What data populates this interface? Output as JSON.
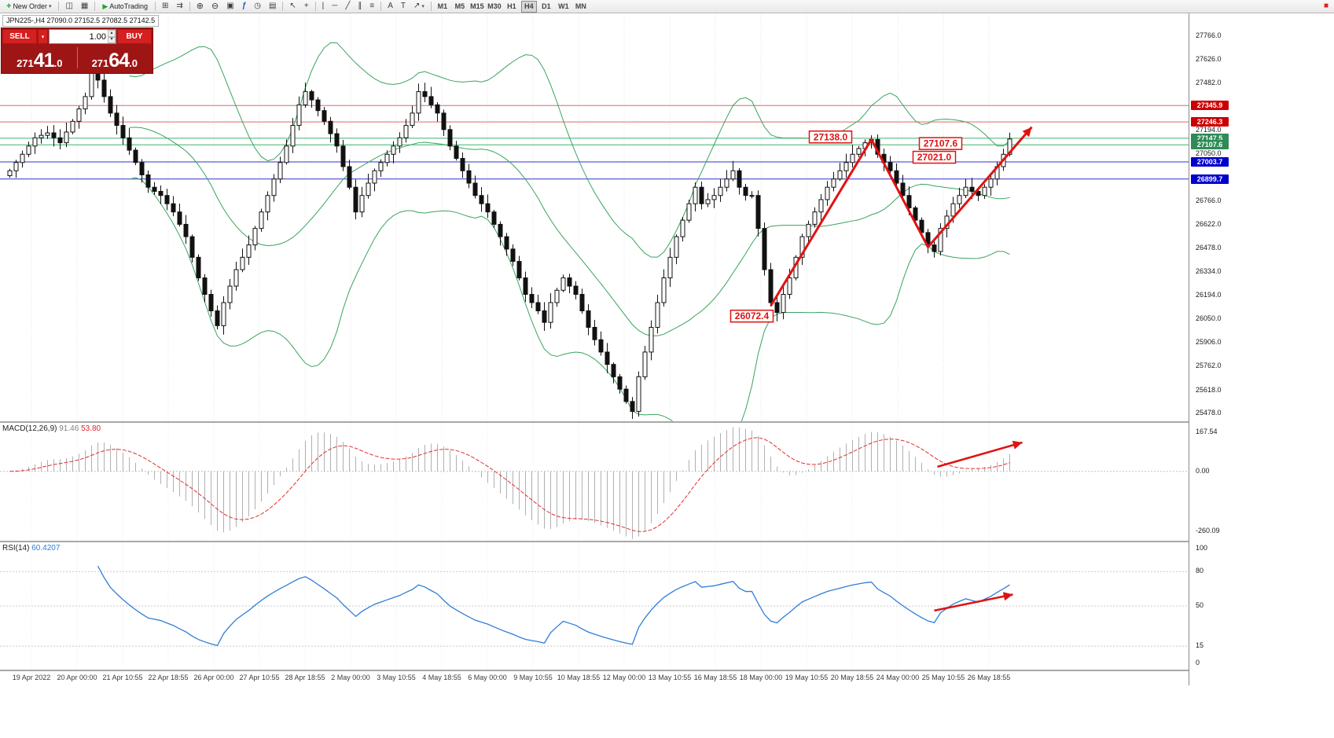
{
  "icons": {
    "doc-plus": "+",
    "chart": "◫",
    "grid": "▦",
    "play": "▶",
    "window-plus": "⊞",
    "auto-scroll": "⇉",
    "zoom-in": "⊕",
    "zoom-out": "⊖",
    "tiles": "▣",
    "function": "ƒ",
    "clock": "◷",
    "template": "▤",
    "cursor": "↖",
    "crosshair": "+",
    "vline": "|",
    "hline": "─",
    "trend": "╱",
    "channel": "∥",
    "fibo": "≡",
    "text-a": "A",
    "text-t": "T",
    "arrow-ne": "↗",
    "red-square": "■",
    "caret-down": "▾",
    "caret-up": "▴"
  },
  "toolbar": {
    "new_order_label": "New Order",
    "autotrading_label": "AutoTrading",
    "timeframes": [
      "M1",
      "M5",
      "M15",
      "M30",
      "H1",
      "H4",
      "D1",
      "W1",
      "MN"
    ],
    "active_timeframe": "H4",
    "items": [
      {
        "type": "button",
        "name": "new-order",
        "label": "New Order",
        "icon": "doc-plus",
        "caret": true
      },
      {
        "type": "sep"
      },
      {
        "type": "icon",
        "name": "charts-list",
        "icon": "chart"
      },
      {
        "type": "icon",
        "name": "profiles",
        "icon": "grid"
      },
      {
        "type": "sep"
      },
      {
        "type": "button",
        "name": "autotrading",
        "label": "AutoTrading",
        "icon": "play"
      },
      {
        "type": "sep"
      },
      {
        "type": "icon",
        "name": "new-chart",
        "icon": "window-plus"
      },
      {
        "type": "icon",
        "name": "auto-scroll",
        "icon": "auto-scroll"
      },
      {
        "type": "sep"
      },
      {
        "type": "icon",
        "name": "zoom-in",
        "icon": "zoom-in"
      },
      {
        "type": "icon",
        "name": "zoom-out",
        "icon": "zoom-out"
      },
      {
        "type": "icon",
        "name": "tile-windows",
        "icon": "tiles"
      },
      {
        "type": "icon",
        "name": "indicators",
        "icon": "function"
      },
      {
        "type": "icon",
        "name": "periods",
        "icon": "clock"
      },
      {
        "type": "icon",
        "name": "templates",
        "icon": "template"
      },
      {
        "type": "sep"
      },
      {
        "type": "icon",
        "name": "cursor",
        "icon": "cursor"
      },
      {
        "type": "icon",
        "name": "crosshair",
        "icon": "crosshair"
      },
      {
        "type": "sep"
      },
      {
        "type": "icon",
        "name": "vertical-line",
        "icon": "vline"
      },
      {
        "type": "icon",
        "name": "horizontal-line",
        "icon": "hline"
      },
      {
        "type": "icon",
        "name": "trendline",
        "icon": "trend"
      },
      {
        "type": "icon",
        "name": "equidistant-channel",
        "icon": "channel"
      },
      {
        "type": "icon",
        "name": "fibonacci",
        "icon": "fibo"
      },
      {
        "type": "sep"
      },
      {
        "type": "icon",
        "name": "text",
        "icon": "text-a"
      },
      {
        "type": "icon",
        "name": "text-label",
        "icon": "text-t"
      },
      {
        "type": "icon",
        "name": "arrows",
        "icon": "arrow-ne",
        "caret": true
      },
      {
        "type": "sep"
      },
      {
        "type": "timeframes"
      },
      {
        "type": "spacer"
      },
      {
        "type": "icon",
        "name": "status",
        "icon": "red-square"
      }
    ]
  },
  "trade_panel": {
    "sell_label": "SELL",
    "buy_label": "BUY",
    "volume": "1.00",
    "sell_price": "27141.0",
    "buy_price": "27164.0",
    "sell_prefix": "271",
    "sell_big": "41",
    "sell_frac": ".0",
    "buy_prefix": "271",
    "buy_big": "64",
    "buy_frac": ".0"
  },
  "chart": {
    "title": "JPN225-,H4 27090.0 27152.5 27082.5 27142.5",
    "bollinger_color": "#3aa35f",
    "arrow_color": "#e01212",
    "price_axis": {
      "min": 25430,
      "max": 27905,
      "ticks": [
        {
          "label": "27766.0",
          "value": 27766
        },
        {
          "label": "27626.0",
          "value": 27626
        },
        {
          "label": "27482.0",
          "value": 27482
        },
        {
          "label": "27194.0",
          "value": 27194
        },
        {
          "label": "27050.0",
          "value": 27050
        },
        {
          "label": "26766.0",
          "value": 26766
        },
        {
          "label": "26622.0",
          "value": 26622
        },
        {
          "label": "26478.0",
          "value": 26478
        },
        {
          "label": "26334.0",
          "value": 26334
        },
        {
          "label": "26194.0",
          "value": 26194
        },
        {
          "label": "26050.0",
          "value": 26050
        },
        {
          "label": "25906.0",
          "value": 25906
        },
        {
          "label": "25762.0",
          "value": 25762
        },
        {
          "label": "25618.0",
          "value": 25618
        },
        {
          "label": "25478.0",
          "value": 25478
        }
      ],
      "tags": [
        {
          "label": "27345.9",
          "value": 27345.9,
          "color": "#cc0000"
        },
        {
          "label": "27246.3",
          "value": 27246.3,
          "color": "#cc0000"
        },
        {
          "label": "27147.5",
          "value": 27147.5,
          "color": "#2e8b57"
        },
        {
          "label": "27107.6",
          "value": 27107.6,
          "color": "#2e8b57"
        },
        {
          "label": "27003.7",
          "value": 27003.7,
          "color": "#0000cd"
        },
        {
          "label": "26899.7",
          "value": 26899.7,
          "color": "#0000cd"
        }
      ]
    },
    "hlines": [
      {
        "price": 27345.9,
        "color": "#e06666"
      },
      {
        "price": 27246.3,
        "color": "#e06666"
      },
      {
        "price": 27147.5,
        "color": "#3cb371"
      },
      {
        "price": 27107.6,
        "color": "#3cb371"
      },
      {
        "price": 27003.7,
        "color": "#3333cc"
      },
      {
        "price": 26899.7,
        "color": "#3333cc"
      }
    ],
    "annotations": [
      {
        "text": "27138.0",
        "xi": 130.5,
        "price": 27155
      },
      {
        "text": "27107.6",
        "xi": 148,
        "price": 27115
      },
      {
        "text": "27021.0",
        "xi": 147,
        "price": 27032
      },
      {
        "text": "26072.4",
        "xi": 118,
        "price": 26068
      }
    ],
    "trend_arrow": [
      [
        121,
        26130
      ],
      [
        137,
        27140
      ],
      [
        146,
        26487
      ],
      [
        162.5,
        27215
      ]
    ],
    "time_axis": [
      "19 Apr 2022",
      "20 Apr 00:00",
      "21 Apr 10:55",
      "22 Apr 18:55",
      "26 Apr 00:00",
      "27 Apr 10:55",
      "28 Apr 18:55",
      "2 May 00:00",
      "3 May 10:55",
      "4 May 18:55",
      "6 May 00:00",
      "9 May 10:55",
      "10 May 18:55",
      "12 May 00:00",
      "13 May 10:55",
      "16 May 18:55",
      "18 May 00:00",
      "19 May 10:55",
      "20 May 18:55",
      "24 May 00:00",
      "25 May 10:55",
      "26 May 18:55"
    ]
  },
  "macd": {
    "label": "MACD(12,26,9)",
    "value_main": "91.46",
    "value_signal": "53.80",
    "ticks": [
      {
        "label": "167.54",
        "value": 167.54
      },
      {
        "label": "0.00",
        "value": 0
      },
      {
        "label": "-260.09",
        "value": -260.09
      }
    ],
    "vrange": {
      "max": 210,
      "min": -300
    },
    "histogram_color": "#b0b0b0",
    "signal_color": "#e03030",
    "arrow": [
      [
        147.5,
        20
      ],
      [
        161,
        125
      ]
    ]
  },
  "rsi": {
    "label": "RSI(14)",
    "value": "60.4207",
    "ticks": [
      {
        "label": "100",
        "value": 100
      },
      {
        "label": "80",
        "value": 80
      },
      {
        "label": "50",
        "value": 50
      },
      {
        "label": "15",
        "value": 15
      },
      {
        "label": "0",
        "value": 0
      }
    ],
    "levels": [
      80,
      50,
      15
    ],
    "line_color": "#2f7ed8",
    "arrow": [
      [
        147,
        46
      ],
      [
        159.5,
        60
      ]
    ]
  },
  "chart_data": {
    "type": "candlestick",
    "symbol": "JPN225-",
    "timeframe": "H4",
    "ohlc_current": {
      "open": 27090.0,
      "high": 27152.5,
      "low": 27082.5,
      "close": 27142.5
    },
    "y_range": [
      25430,
      27905
    ],
    "closes": [
      26950,
      27000,
      27050,
      27100,
      27150,
      27165,
      27180,
      27150,
      27120,
      27185,
      27250,
      27325,
      27400,
      27560,
      27500,
      27400,
      27300,
      27225,
      27150,
      27075,
      27000,
      26925,
      26850,
      26825,
      26800,
      26750,
      26700,
      26625,
      26550,
      26425,
      26300,
      26200,
      26100,
      26010,
      26150,
      26250,
      26350,
      26425,
      26500,
      26600,
      26700,
      26800,
      26900,
      27000,
      27100,
      27225,
      27350,
      27430,
      27380,
      27315,
      27250,
      27175,
      27100,
      26975,
      26850,
      26700,
      26800,
      26875,
      26950,
      27000,
      27050,
      27100,
      27150,
      27225,
      27300,
      27430,
      27400,
      27350,
      27300,
      27200,
      27100,
      27025,
      26950,
      26875,
      26800,
      26750,
      26700,
      26625,
      26550,
      26475,
      26400,
      26300,
      26200,
      26150,
      26100,
      26030,
      26150,
      26225,
      26300,
      26250,
      26200,
      26100,
      26000,
      25925,
      25850,
      25775,
      25700,
      25625,
      25550,
      25490,
      25700,
      25850,
      26000,
      26150,
      26300,
      26425,
      26550,
      26650,
      26750,
      26850,
      26750,
      26775,
      26800,
      26850,
      26900,
      26950,
      26850,
      26800,
      26800,
      26600,
      26350,
      26150,
      26090,
      26200,
      26300,
      26425,
      26550,
      26625,
      26700,
      26775,
      26850,
      26900,
      26950,
      27000,
      27050,
      27085,
      27120,
      27140,
      27050,
      27000,
      26950,
      26875,
      26800,
      26725,
      26650,
      26575,
      26500,
      26460,
      26600,
      26675,
      26750,
      26800,
      26850,
      26825,
      26800,
      26850,
      26900,
      26975,
      27050,
      27142.5
    ],
    "indicators": {
      "bollinger": {
        "period": 20,
        "deviation": 2
      },
      "macd": {
        "fast": 12,
        "slow": 26,
        "signal": 9,
        "current_main": 91.46,
        "current_signal": 53.8,
        "axis_max": 167.54,
        "axis_min": -260.09
      },
      "rsi": {
        "period": 14,
        "current": 60.4207,
        "levels": [
          80,
          50,
          15
        ]
      }
    },
    "key_levels": {
      "resistance": [
        27345.9,
        27246.3
      ],
      "minor": [
        27147.5,
        27107.6
      ],
      "support": [
        27003.7,
        26899.7
      ]
    },
    "swing_points": [
      {
        "label": "26072.4",
        "price": 26072.4
      },
      {
        "label": "27138.0",
        "price": 27138.0
      },
      {
        "label": "27107.6",
        "price": 27107.6
      },
      {
        "label": "27021.0",
        "price": 27021.0
      }
    ]
  }
}
